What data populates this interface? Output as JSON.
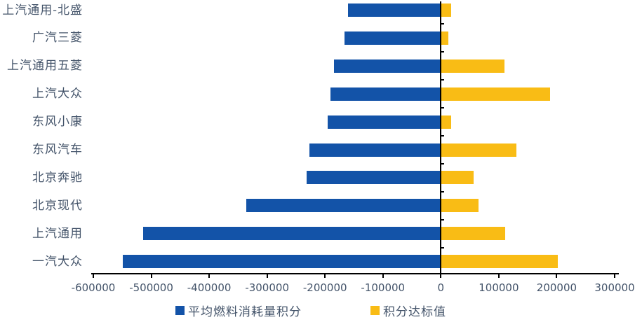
{
  "chart_data": {
    "type": "bar",
    "orientation": "horizontal-diverging",
    "title": "",
    "xlabel": "",
    "ylabel": "",
    "grid": false,
    "legend_position": "bottom",
    "xlim": [
      -600000,
      300000
    ],
    "x_ticks": [
      -600000,
      -500000,
      -400000,
      -300000,
      -200000,
      -100000,
      0,
      100000,
      200000,
      300000
    ],
    "x_tick_labels": [
      "-600000",
      "-500000",
      "-400000",
      "-300000",
      "-200000",
      "-100000",
      "0",
      "100000",
      "200000",
      "300000"
    ],
    "categories": [
      "上汽通用-北盛",
      "广汽三菱",
      "上汽通用五菱",
      "上汽大众",
      "东风小康",
      "东风汽车",
      "北京奔驰",
      "北京现代",
      "上汽通用",
      "一汽大众"
    ],
    "series": [
      {
        "name": "平均燃料消耗量积分",
        "color": "#1353A8",
        "values": [
          -160000,
          -166000,
          -185000,
          -191000,
          -196000,
          -227000,
          -232000,
          -336000,
          -514000,
          -549000
        ]
      },
      {
        "name": "积分达标值",
        "color": "#F9BC15",
        "values": [
          18000,
          13000,
          110000,
          189000,
          18000,
          131000,
          57000,
          65000,
          111000,
          202000
        ]
      }
    ]
  },
  "colors": {
    "bar_negative": "#1353A8",
    "bar_positive": "#F9BC15",
    "axis": "#000000",
    "text": "#44546A",
    "background": "#FFFFFF"
  }
}
